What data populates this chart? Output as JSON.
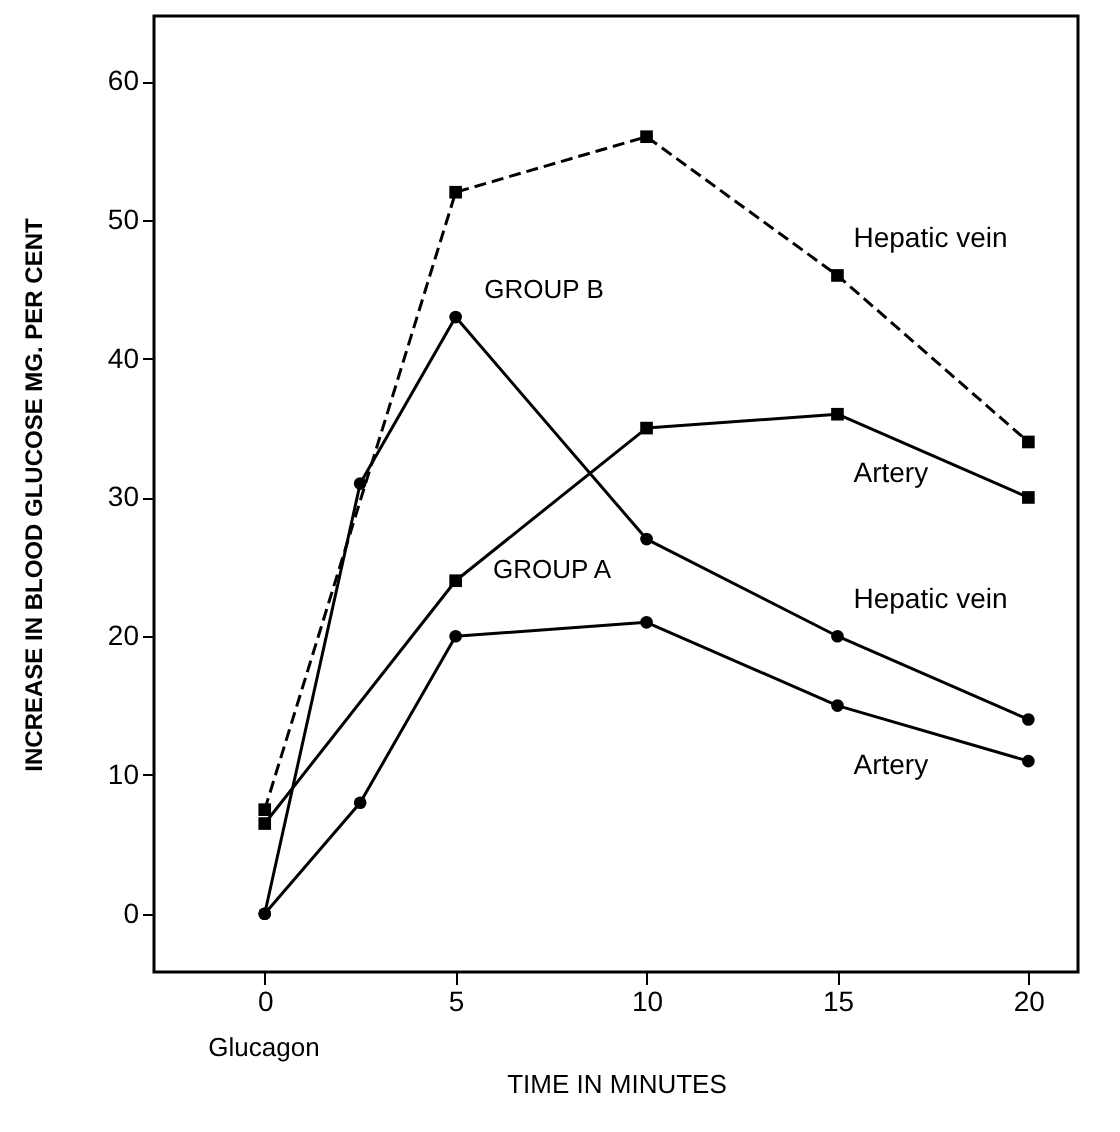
{
  "chart_data": {
    "type": "line",
    "xlabel": "TIME IN MINUTES",
    "ylabel": "INCREASE IN BLOOD GLUCOSE MG. PER CENT",
    "xlim": [
      -2.9,
      21.3
    ],
    "ylim": [
      -4.2,
      64.7
    ],
    "xticks": [
      0,
      5,
      10,
      15,
      20
    ],
    "yticks": [
      0,
      10,
      20,
      30,
      40,
      50,
      60
    ],
    "grid": false,
    "legend": false,
    "series": [
      {
        "name": "Hepatic vein",
        "color": "#000000",
        "marker": "square",
        "line_style": "dashed",
        "x": [
          0,
          5,
          10,
          15,
          20
        ],
        "values": [
          7.5,
          52,
          56,
          46,
          34
        ]
      },
      {
        "name": "Artery",
        "color": "#000000",
        "marker": "square",
        "line_style": "solid",
        "x": [
          0,
          5,
          10,
          15,
          20
        ],
        "values": [
          6.5,
          24,
          35,
          36,
          30
        ]
      },
      {
        "name": "Hepatic vein",
        "color": "#000000",
        "marker": "circle",
        "line_style": "solid",
        "x": [
          0,
          2.5,
          5,
          10,
          15,
          20
        ],
        "values": [
          0,
          31,
          43,
          27,
          20,
          14
        ]
      },
      {
        "name": "Artery",
        "color": "#000000",
        "marker": "circle",
        "line_style": "solid",
        "x": [
          0,
          2.5,
          5,
          10,
          15,
          20
        ],
        "values": [
          0,
          8,
          20,
          21,
          15,
          11
        ]
      }
    ],
    "annotations": [
      "GROUP B",
      "GROUP A",
      "Glucagon"
    ]
  }
}
